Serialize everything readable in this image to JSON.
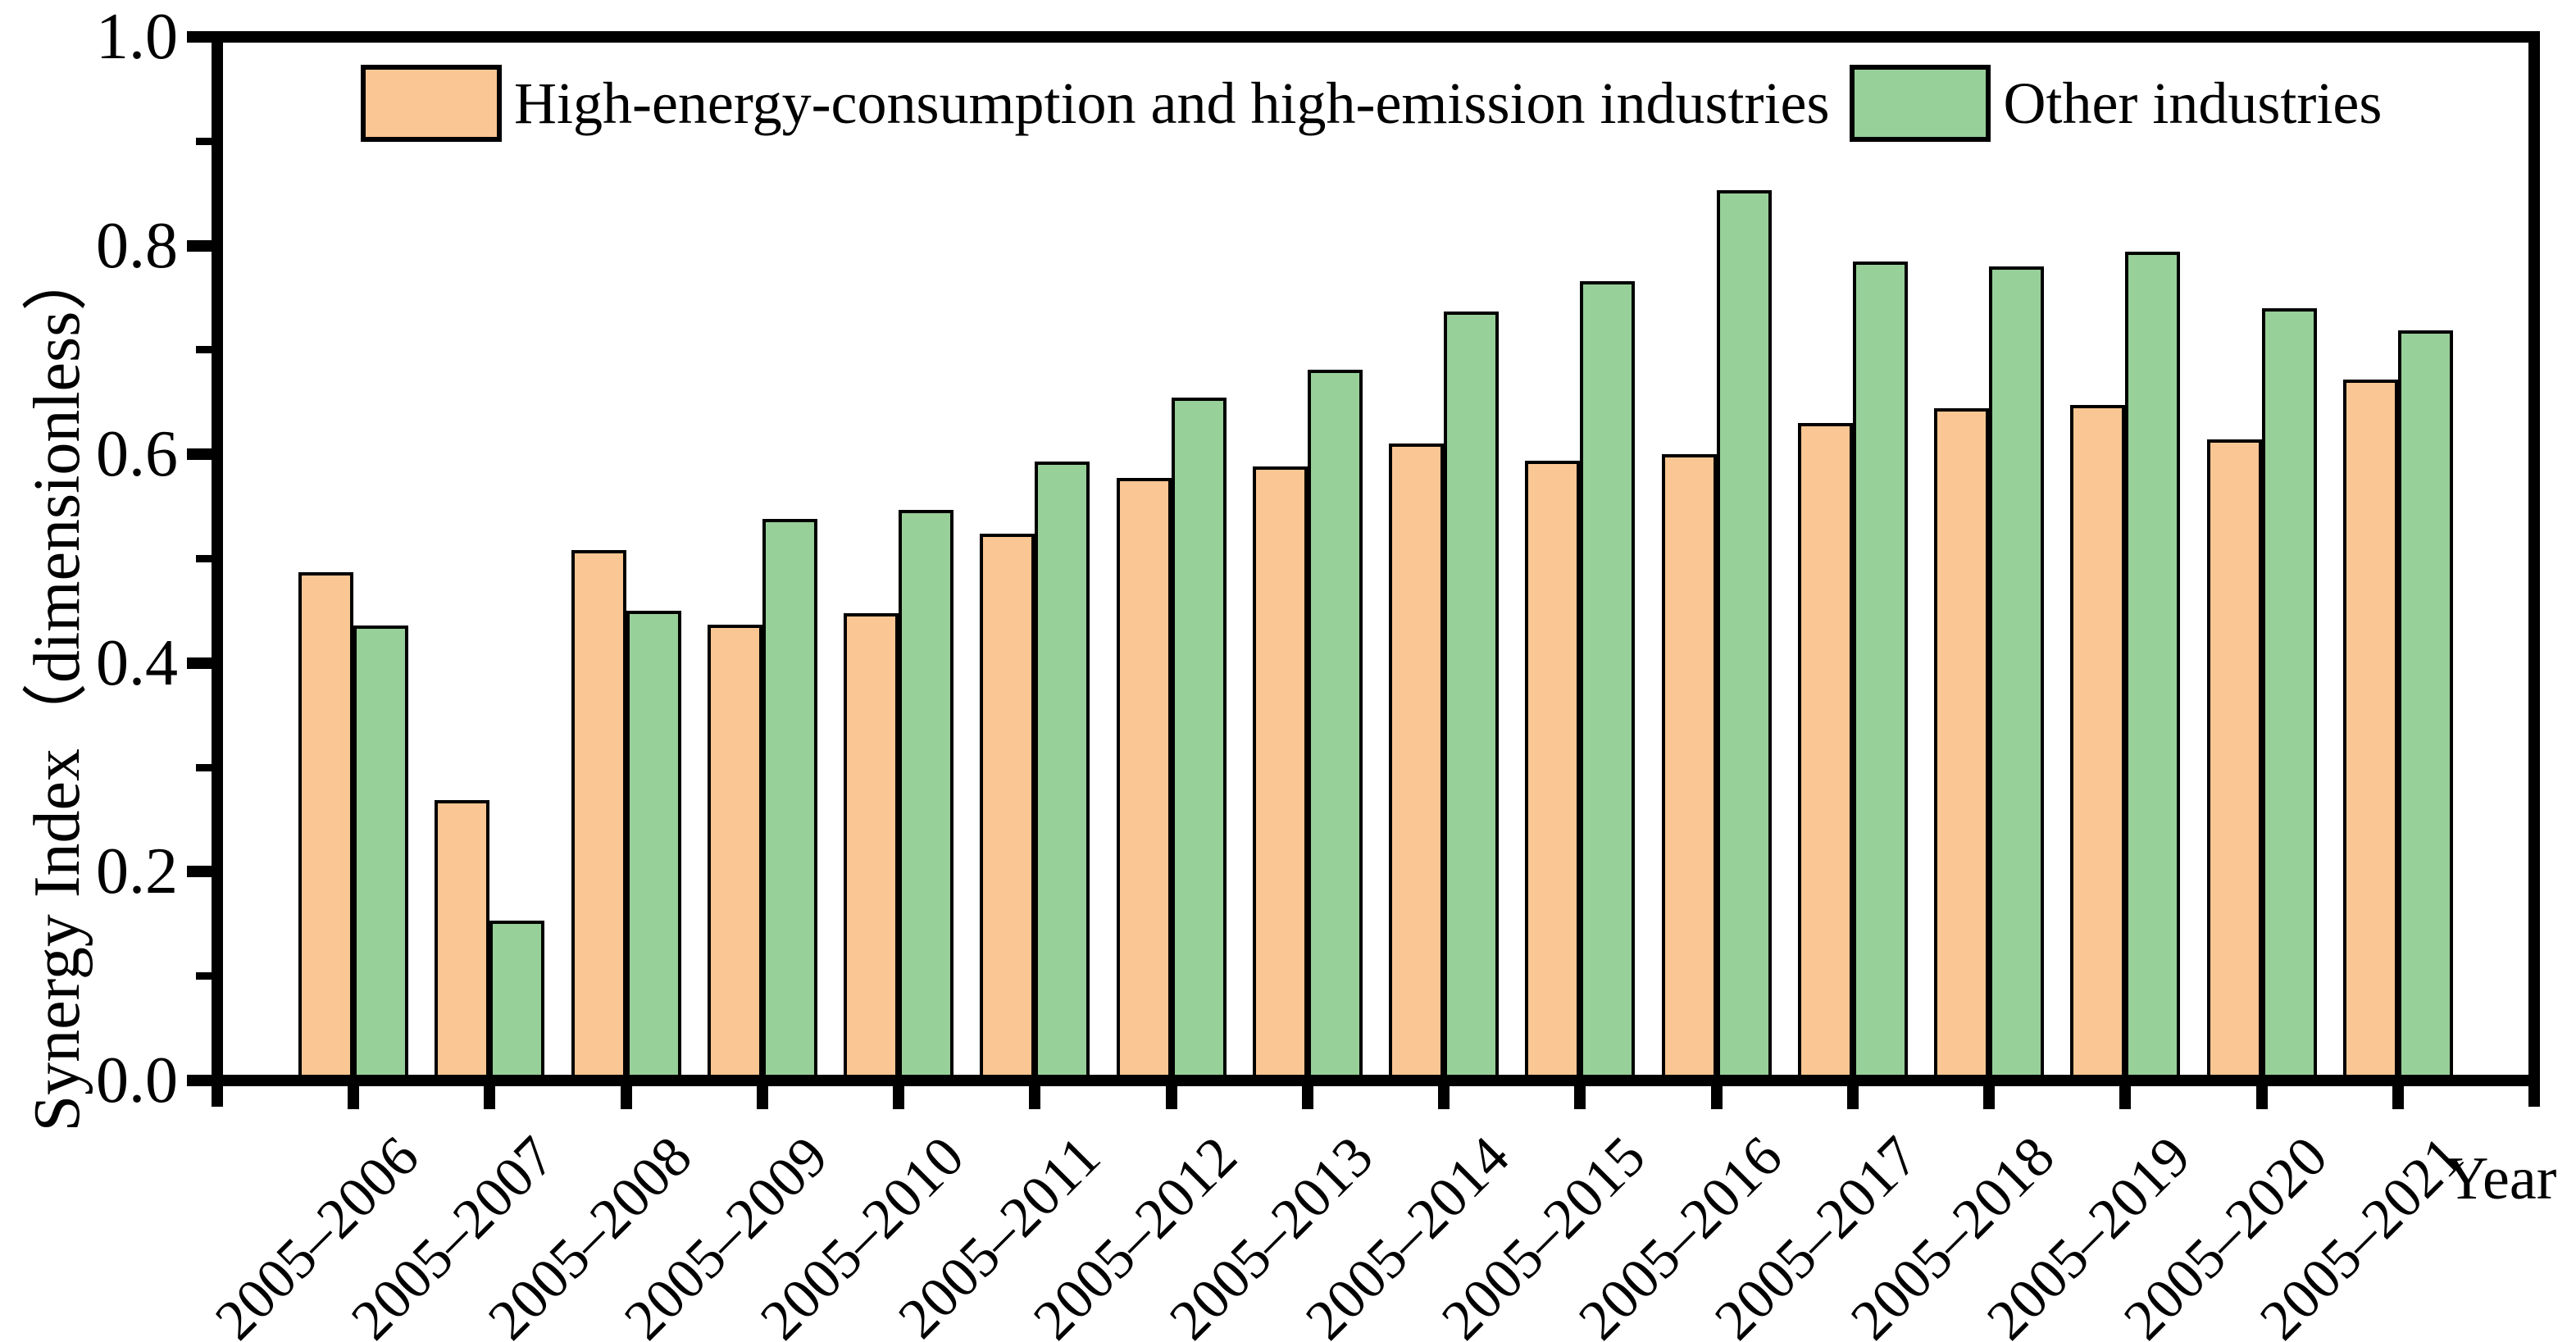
{
  "figure": {
    "background_color": "#ffffff",
    "axis_color": "#000000"
  },
  "chart_data": {
    "type": "bar",
    "title": "",
    "xlabel": "Year",
    "ylabel": "Synergy Index（dimensionless）",
    "ylim": [
      0.0,
      1.0
    ],
    "y_major_ticks": [
      0.0,
      0.2,
      0.4,
      0.6,
      0.8,
      1.0
    ],
    "y_minor_ticks": [
      0.1,
      0.3,
      0.5,
      0.7,
      0.9
    ],
    "grid": false,
    "legend_position": "top-inside",
    "categories": [
      "2005–2006",
      "2005–2007",
      "2005–2008",
      "2005–2009",
      "2005–2010",
      "2005–2011",
      "2005–2012",
      "2005–2013",
      "2005–2014",
      "2005–2015",
      "2005–2016",
      "2005–2017",
      "2005–2018",
      "2005–2019",
      "2005–2020",
      "2005–2021"
    ],
    "series": [
      {
        "name": "High-energy-consumption and high-emission industries",
        "color": "#FAC693",
        "border_color": "#000000",
        "values": [
          0.487,
          0.269,
          0.508,
          0.437,
          0.448,
          0.524,
          0.577,
          0.588,
          0.61,
          0.594,
          0.6,
          0.63,
          0.644,
          0.647,
          0.614,
          0.672
        ]
      },
      {
        "name": "Other industries",
        "color": "#97D098",
        "border_color": "#000000",
        "values": [
          0.436,
          0.153,
          0.45,
          0.538,
          0.547,
          0.593,
          0.654,
          0.681,
          0.737,
          0.766,
          0.853,
          0.785,
          0.78,
          0.794,
          0.74,
          0.719
        ]
      }
    ]
  }
}
